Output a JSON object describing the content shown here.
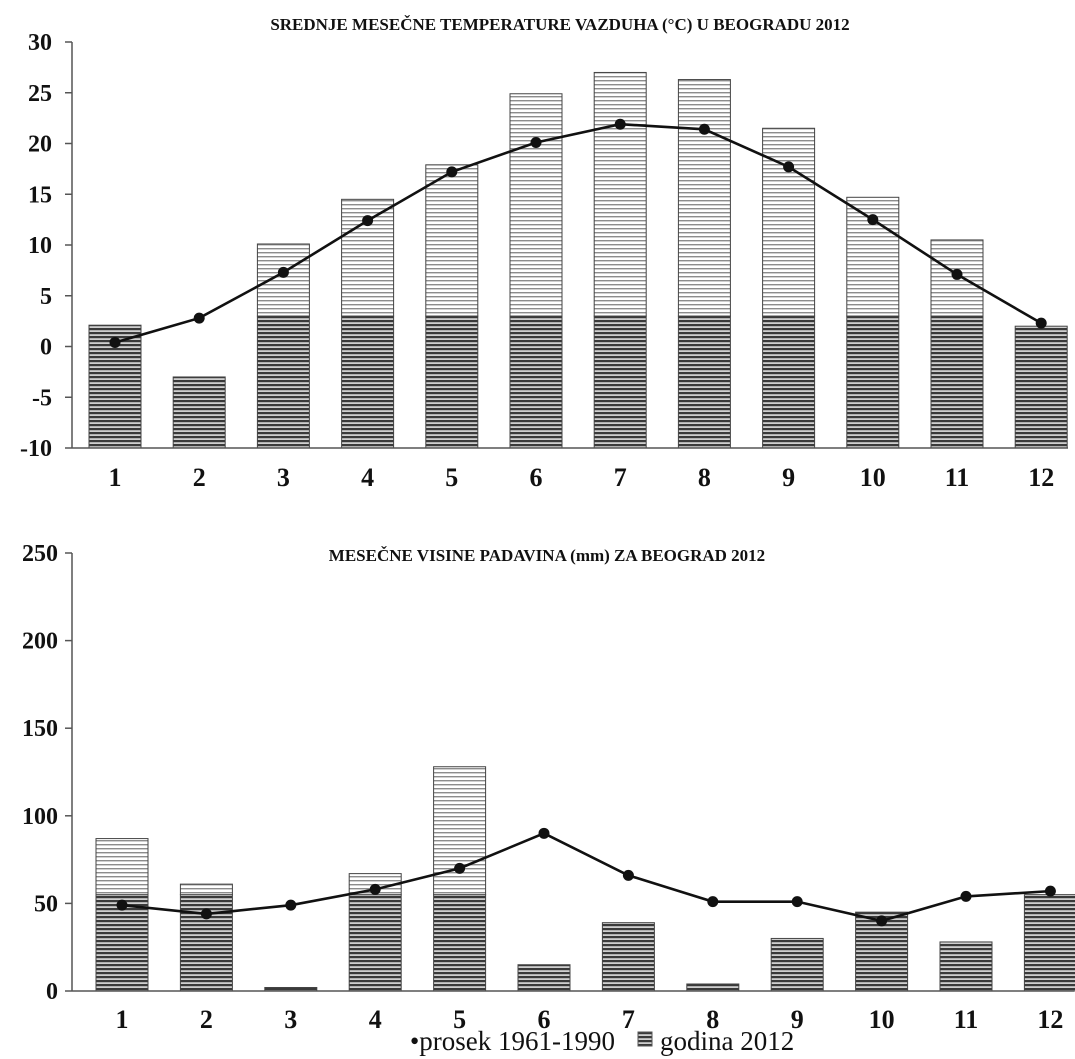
{
  "chart_data": [
    {
      "type": "bar",
      "title": "SREDNJE MESEČNE TEMPERATURE VAZDUHA (°C) U BEOGRADU 2012",
      "categories": [
        "1",
        "2",
        "3",
        "4",
        "5",
        "6",
        "7",
        "8",
        "9",
        "10",
        "11",
        "12"
      ],
      "ylim": [
        -10,
        30
      ],
      "yticks": [
        30,
        25,
        20,
        15,
        10,
        5,
        0,
        -5,
        -10
      ],
      "series": [
        {
          "name": "godina 2012",
          "kind": "bar",
          "values": [
            2.1,
            -3.0,
            10.1,
            14.5,
            17.9,
            24.9,
            27.0,
            26.3,
            21.5,
            14.7,
            10.5,
            2.0
          ]
        },
        {
          "name": "prosek 1961-1990",
          "kind": "line",
          "values": [
            0.4,
            2.8,
            7.3,
            12.4,
            17.2,
            20.1,
            21.9,
            21.4,
            17.7,
            12.5,
            7.1,
            2.3
          ]
        }
      ],
      "grid": false
    },
    {
      "type": "bar",
      "title": "MESEČNE VISINE PADAVINA (mm) ZA BEOGRAD 2012",
      "categories": [
        "1",
        "2",
        "3",
        "4",
        "5",
        "6",
        "7",
        "8",
        "9",
        "10",
        "11",
        "12"
      ],
      "ylim": [
        0,
        250
      ],
      "yticks": [
        250,
        200,
        150,
        100,
        50,
        0
      ],
      "series": [
        {
          "name": "godina 2012",
          "kind": "bar",
          "values": [
            87,
            61,
            2,
            67,
            128,
            15,
            39,
            4,
            30,
            45,
            28,
            55
          ]
        },
        {
          "name": "prosek 1961-1990",
          "kind": "line",
          "values": [
            49,
            44,
            49,
            58,
            70,
            90,
            66,
            51,
            51,
            40,
            54,
            57
          ]
        }
      ],
      "grid": false
    }
  ],
  "legend": {
    "line_label": "•prosek 1961-1990",
    "bar_label": "godina 2012",
    "placement": "bottom-center"
  },
  "colors": {
    "bar_dark_stripe": "#3a3a3a",
    "bar_light_stripe": "#8c8c8c",
    "line": "#111111"
  }
}
